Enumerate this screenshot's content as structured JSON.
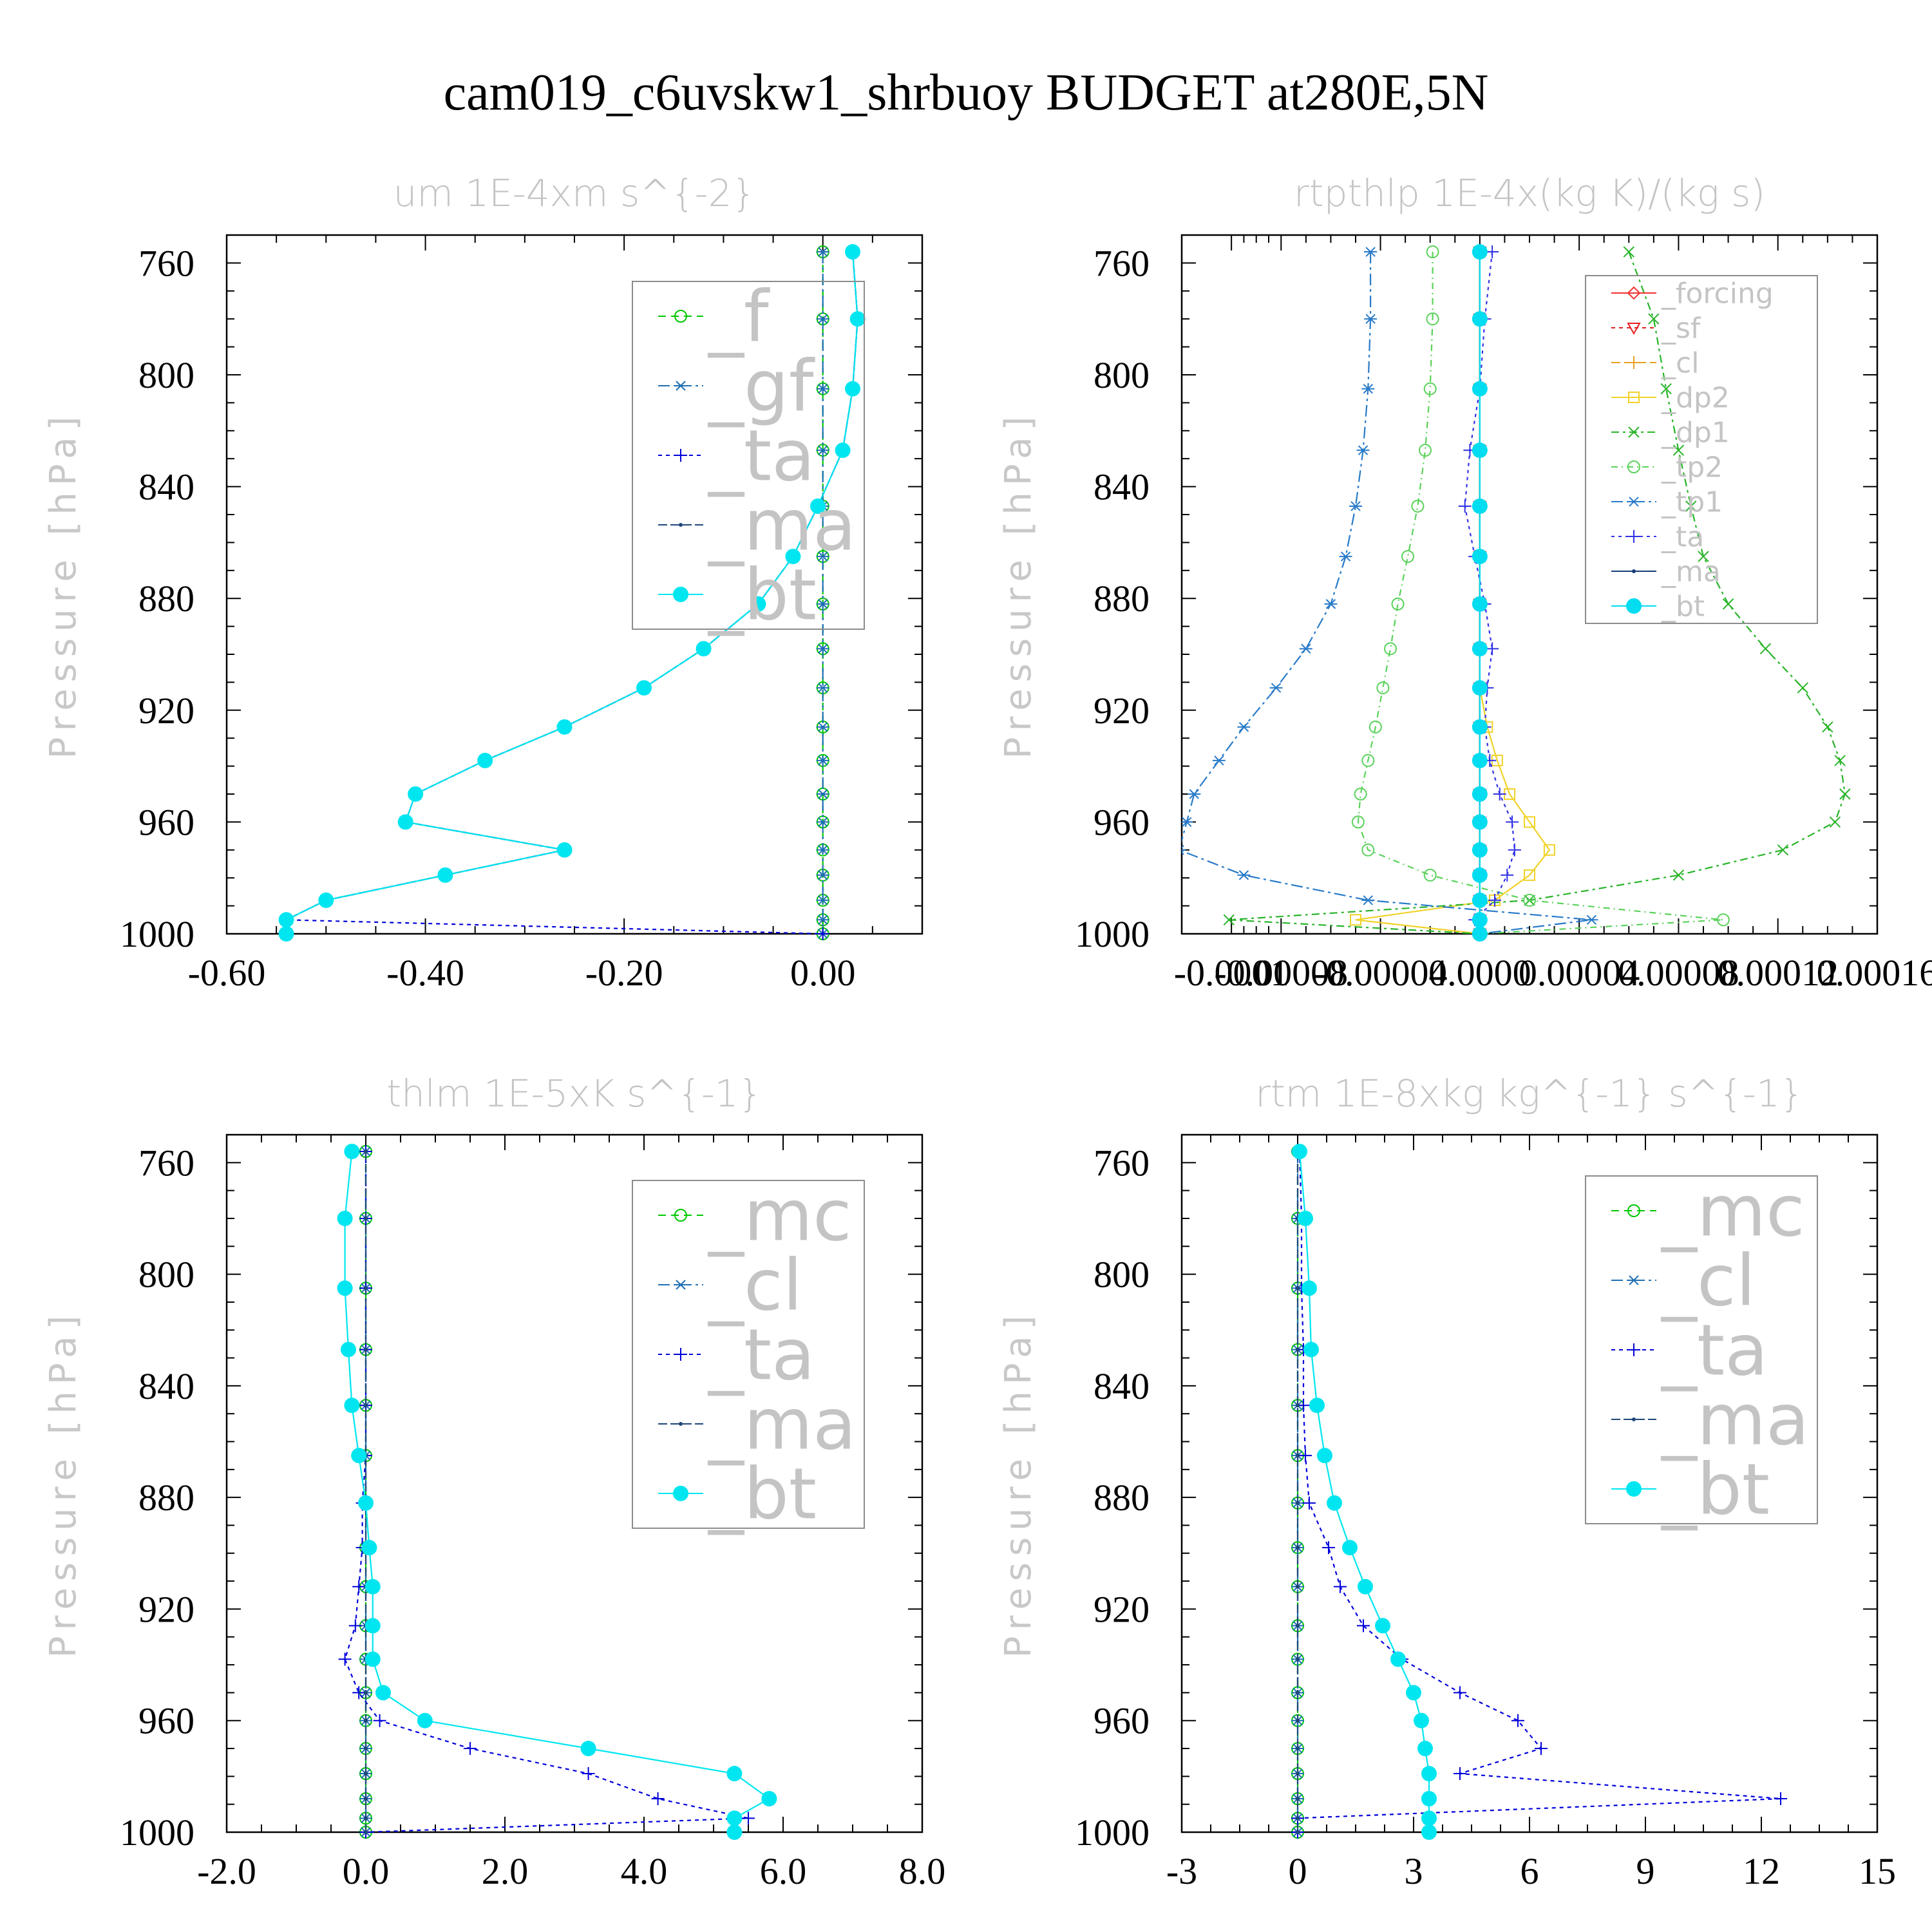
{
  "figure_title": "cam019_c6uvskw1_shrbuoy  BUDGET at280E,5N",
  "ylabel": "Pressure [hPa]",
  "chart_data": [
    {
      "type": "line",
      "title": "um   1E-4xm s^{-2}",
      "ylabel": "Pressure [hPa]",
      "y_inverted": true,
      "ylim": [
        750,
        1000
      ],
      "yticks": [
        760,
        800,
        840,
        880,
        920,
        960,
        1000
      ],
      "xlim": [
        -0.6,
        0.1
      ],
      "xticks": [
        -0.6,
        -0.4,
        -0.2,
        0.0
      ],
      "xtick_labels": [
        "-0.60",
        "-0.40",
        "-0.20",
        "0.00"
      ],
      "legend_position": "upper-right",
      "legend_font": 110,
      "y": [
        756,
        780,
        805,
        827,
        847,
        865,
        882,
        898,
        912,
        926,
        938,
        950,
        960,
        970,
        979,
        988,
        995,
        1000
      ],
      "series": [
        {
          "name": "_f",
          "color": "#00c800",
          "marker": "circle-open",
          "dash": "12 8",
          "values": [
            0,
            0,
            0,
            0,
            0,
            0,
            0,
            0,
            0,
            0,
            0,
            0,
            0,
            0,
            0,
            0,
            0,
            0
          ]
        },
        {
          "name": "_gf",
          "color": "#1e6eb4",
          "marker": "asterisk",
          "dash": "18 6 4 6",
          "values": [
            0,
            0,
            0,
            0,
            0,
            0,
            0,
            0,
            0,
            0,
            0,
            0,
            0,
            0,
            0,
            0,
            0,
            0
          ]
        },
        {
          "name": "_ta",
          "color": "#0000dc",
          "marker": "plus",
          "dash": "6 6",
          "values": [
            0.03,
            0.035,
            0.03,
            0.02,
            -0.005,
            -0.03,
            -0.065,
            -0.12,
            -0.18,
            -0.26,
            -0.34,
            -0.41,
            -0.42,
            -0.26,
            -0.38,
            -0.5,
            -0.54,
            0.0
          ]
        },
        {
          "name": "_ma",
          "color": "#1e4678",
          "marker": "dot",
          "dash": "14 5",
          "values": [
            0.03,
            0.035,
            0.03,
            0.02,
            -0.005,
            -0.03,
            -0.065,
            -0.12,
            -0.18,
            -0.26,
            -0.34,
            -0.41,
            -0.42,
            -0.26,
            -0.38,
            -0.5,
            -0.54,
            -0.54
          ]
        },
        {
          "name": "_bt",
          "color": "#00e6f0",
          "marker": "filled",
          "dash": "",
          "values": [
            0.03,
            0.035,
            0.03,
            0.02,
            -0.005,
            -0.03,
            -0.065,
            -0.12,
            -0.18,
            -0.26,
            -0.34,
            -0.41,
            -0.42,
            -0.26,
            -0.38,
            -0.5,
            -0.54,
            -0.54
          ]
        }
      ]
    },
    {
      "type": "line",
      "title": "rtpthlp   1E-4x(kg K)/(kg s)",
      "ylabel": "Pressure [hPa]",
      "y_inverted": true,
      "ylim": [
        750,
        1000
      ],
      "yticks": [
        760,
        800,
        840,
        880,
        920,
        960,
        1000
      ],
      "xlim": [
        -0.00012,
        0.00016
      ],
      "xticks": [
        -0.0001,
        -8e-05,
        -4e-05,
        0.0,
        4e-05,
        8e-05,
        0.00012,
        0.00016
      ],
      "xtick_labels": [
        "-0.0001",
        "-0.00008",
        "-0.00004",
        "0.0000",
        "0.00004",
        "0.00008",
        "0.00012",
        "0.00016"
      ],
      "legend_position": "upper-right",
      "legend_font": 44,
      "y": [
        756,
        780,
        805,
        827,
        847,
        865,
        882,
        898,
        912,
        926,
        938,
        950,
        960,
        970,
        979,
        988,
        995,
        1000
      ],
      "series": [
        {
          "name": "_forcing",
          "color": "#f03232",
          "marker": "diamond-open",
          "dash": "",
          "values": [
            0,
            0,
            0,
            0,
            0,
            0,
            0,
            0,
            0,
            0,
            0,
            0,
            0,
            0,
            0,
            0,
            0,
            0
          ]
        },
        {
          "name": "_sf",
          "color": "#e61e1e",
          "marker": "triangle-open",
          "dash": "6 6",
          "values": [
            0,
            0,
            0,
            0,
            0,
            0,
            0,
            0,
            0,
            0,
            0,
            0,
            0,
            0,
            0,
            0,
            0,
            0
          ]
        },
        {
          "name": "_cl",
          "color": "#e6a01e",
          "marker": "plus",
          "dash": "14 6",
          "values": [
            0,
            0,
            0,
            0,
            0,
            0,
            0,
            0,
            0,
            0,
            0,
            0,
            0,
            0,
            0,
            0,
            0,
            0
          ]
        },
        {
          "name": "_dp2",
          "color": "#f0d228",
          "marker": "square-open",
          "dash": "",
          "values": [
            0,
            0,
            0,
            0,
            0,
            0,
            0,
            0,
            0,
            3e-06,
            7e-06,
            1.2e-05,
            2e-05,
            2.8e-05,
            2e-05,
            6e-06,
            -5e-05,
            0
          ]
        },
        {
          "name": "_dp1",
          "color": "#28b428",
          "marker": "x",
          "dash": "12 6 4 6",
          "values": [
            6e-05,
            7e-05,
            7.5e-05,
            8e-05,
            8.5e-05,
            9e-05,
            0.0001,
            0.000115,
            0.00013,
            0.00014,
            0.000145,
            0.000147,
            0.000143,
            0.000122,
            8e-05,
            2e-05,
            -0.000101,
            0
          ]
        },
        {
          "name": "_tp2",
          "color": "#5ad25a",
          "marker": "circle-open",
          "dash": "10 6 2 6",
          "values": [
            -1.9e-05,
            -1.9e-05,
            -2e-05,
            -2.2e-05,
            -2.5e-05,
            -2.9e-05,
            -3.3e-05,
            -3.6e-05,
            -3.9e-05,
            -4.2e-05,
            -4.5e-05,
            -4.8e-05,
            -4.9e-05,
            -4.5e-05,
            -2e-05,
            2e-05,
            9.8e-05,
            0
          ]
        },
        {
          "name": "_tp1",
          "color": "#287ac8",
          "marker": "asterisk",
          "dash": "18 6 4 6",
          "values": [
            -4.4e-05,
            -4.4e-05,
            -4.5e-05,
            -4.7e-05,
            -5e-05,
            -5.4e-05,
            -6e-05,
            -7e-05,
            -8.2e-05,
            -9.5e-05,
            -0.000105,
            -0.000115,
            -0.000118,
            -0.000121,
            -9.5e-05,
            -4.5e-05,
            4.5e-05,
            0
          ]
        },
        {
          "name": "_ta",
          "color": "#3232e6",
          "marker": "plus",
          "dash": "5 6",
          "values": [
            5e-06,
            2e-06,
            0.0,
            -4e-06,
            -6e-06,
            -2e-06,
            2e-06,
            5e-06,
            3e-06,
            2e-06,
            4e-06,
            8e-06,
            1.3e-05,
            1.4e-05,
            1.1e-05,
            6e-06,
            -2e-06,
            0
          ]
        },
        {
          "name": "_ma",
          "color": "#143c78",
          "marker": "dot",
          "dash": "",
          "values": [
            0,
            0,
            0,
            0,
            0,
            0,
            0,
            0,
            0,
            0,
            0,
            0,
            0,
            0,
            0,
            0,
            0,
            0
          ]
        },
        {
          "name": "_bt",
          "color": "#00dcf0",
          "marker": "filled",
          "dash": "",
          "values": [
            0,
            0,
            0,
            0,
            0,
            0,
            0,
            0,
            0,
            0,
            0,
            0,
            0,
            0,
            0,
            0,
            0,
            0
          ]
        }
      ]
    },
    {
      "type": "line",
      "title": "thlm   1E-5xK s^{-1}",
      "ylabel": "Pressure [hPa]",
      "y_inverted": true,
      "ylim": [
        750,
        1000
      ],
      "yticks": [
        760,
        800,
        840,
        880,
        920,
        960,
        1000
      ],
      "xlim": [
        -2.0,
        8.0
      ],
      "xticks": [
        -2,
        0,
        2,
        4,
        6,
        8
      ],
      "xtick_labels": [
        "-2.0",
        "0.0",
        "2.0",
        "4.0",
        "6.0",
        "8.0"
      ],
      "legend_position": "upper-right",
      "legend_font": 110,
      "y": [
        756,
        780,
        805,
        827,
        847,
        865,
        882,
        898,
        912,
        926,
        938,
        950,
        960,
        970,
        979,
        988,
        995,
        1000
      ],
      "series": [
        {
          "name": "_mc",
          "color": "#00c800",
          "marker": "circle-open",
          "dash": "12 8",
          "values": [
            0,
            0,
            0,
            0,
            0,
            0,
            0,
            0,
            0,
            0,
            0,
            0,
            0,
            0,
            0,
            0,
            0,
            0
          ]
        },
        {
          "name": "_cl",
          "color": "#1e6eb4",
          "marker": "asterisk",
          "dash": "18 6 4 6",
          "values": [
            0,
            0,
            0,
            0,
            0,
            0,
            0,
            0,
            0,
            0,
            0,
            0,
            0,
            0,
            0,
            0,
            0,
            0
          ]
        },
        {
          "name": "_ta",
          "color": "#0000dc",
          "marker": "plus",
          "dash": "6 6",
          "values": [
            0,
            0,
            0,
            0,
            0,
            0,
            -0.05,
            -0.05,
            -0.1,
            -0.15,
            -0.3,
            -0.1,
            0.2,
            1.5,
            3.2,
            4.2,
            5.5,
            0
          ]
        },
        {
          "name": "_ma",
          "color": "#1e4678",
          "marker": "dot",
          "dash": "14 5",
          "values": [
            0,
            0,
            0,
            0,
            0,
            0,
            0,
            0,
            0,
            0,
            0,
            0,
            0,
            0,
            0,
            0,
            0,
            0
          ]
        },
        {
          "name": "_bt",
          "color": "#00e6f0",
          "marker": "filled",
          "dash": "",
          "values": [
            -0.2,
            -0.3,
            -0.3,
            -0.25,
            -0.2,
            -0.1,
            0.0,
            0.05,
            0.1,
            0.1,
            0.1,
            0.25,
            0.85,
            3.2,
            5.3,
            5.8,
            5.3,
            5.3
          ]
        }
      ]
    },
    {
      "type": "line",
      "title": "rtm   1E-8xkg kg^{-1} s^{-1}",
      "ylabel": "Pressure [hPa]",
      "y_inverted": true,
      "ylim": [
        750,
        1000
      ],
      "yticks": [
        760,
        800,
        840,
        880,
        920,
        960,
        1000
      ],
      "xlim": [
        -3,
        15
      ],
      "xticks": [
        -3,
        0,
        3,
        6,
        9,
        12,
        15
      ],
      "xtick_labels": [
        "-3",
        "0",
        "3",
        "6",
        "9",
        "12",
        "15"
      ],
      "legend_position": "upper-right",
      "legend_font": 110,
      "y": [
        756,
        780,
        805,
        827,
        847,
        865,
        882,
        898,
        912,
        926,
        938,
        950,
        960,
        970,
        979,
        988,
        995,
        1000
      ],
      "series": [
        {
          "name": "_mc",
          "color": "#00c800",
          "marker": "circle-open",
          "dash": "12 8",
          "values": [
            0,
            0,
            0,
            0,
            0,
            0,
            0,
            0,
            0,
            0,
            0,
            0,
            0,
            0,
            0,
            0,
            0,
            0
          ]
        },
        {
          "name": "_cl",
          "color": "#1e6eb4",
          "marker": "asterisk",
          "dash": "18 6 4 6",
          "values": [
            0,
            0,
            0,
            0,
            0,
            0,
            0,
            0,
            0,
            0,
            0,
            0,
            0,
            0,
            0,
            0,
            0,
            0
          ]
        },
        {
          "name": "_ta",
          "color": "#0000dc",
          "marker": "plus",
          "dash": "6 6",
          "values": [
            0.05,
            0.1,
            0.1,
            0.15,
            0.15,
            0.2,
            0.3,
            0.8,
            1.1,
            1.7,
            2.7,
            4.2,
            5.7,
            6.3,
            4.2,
            12.5,
            0,
            0
          ]
        },
        {
          "name": "_ma",
          "color": "#1e4678",
          "marker": "dot",
          "dash": "14 5",
          "values": [
            0,
            0,
            0,
            0,
            0,
            0,
            0,
            0,
            0,
            0,
            0,
            0,
            0,
            0,
            0,
            0,
            0,
            0
          ]
        },
        {
          "name": "_bt",
          "color": "#00e6f0",
          "marker": "filled",
          "dash": "",
          "values": [
            0.05,
            0.2,
            0.3,
            0.35,
            0.5,
            0.7,
            0.95,
            1.35,
            1.75,
            2.2,
            2.6,
            3.0,
            3.2,
            3.3,
            3.4,
            3.4,
            3.4,
            3.4
          ]
        }
      ]
    }
  ]
}
